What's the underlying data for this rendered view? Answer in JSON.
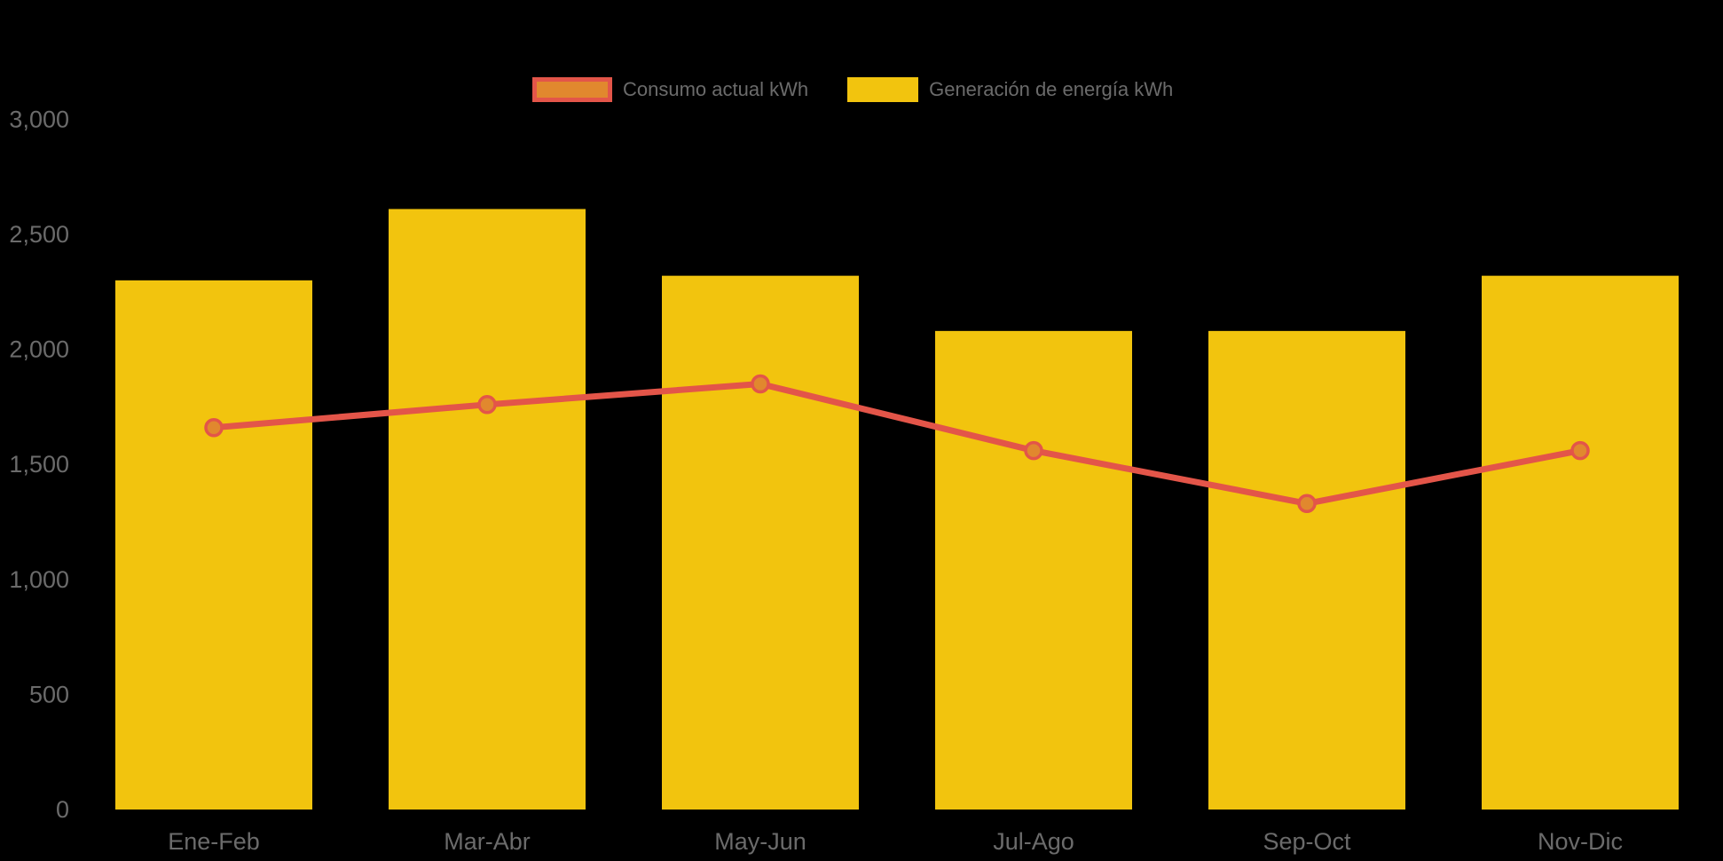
{
  "legend": {
    "items": [
      {
        "label": "Consumo actual kWh",
        "swatch_fill": "#E1882E",
        "swatch_border": "#E35549",
        "series_type": "line"
      },
      {
        "label": "Generación de energía kWh",
        "swatch_fill": "#F2C40E",
        "swatch_border": null,
        "series_type": "bar"
      }
    ]
  },
  "y_axis": {
    "tick_labels": [
      "3,000",
      "2,500",
      "2,000",
      "1,500",
      "1,000",
      "500",
      "0"
    ],
    "tick_values": [
      3000,
      2500,
      2000,
      1500,
      1000,
      500,
      0
    ]
  },
  "x_axis": {
    "labels": [
      "Ene-Feb",
      "Mar-Abr",
      "May-Jun",
      "Jul-Ago",
      "Sep-Oct",
      "Nov-Dic"
    ]
  },
  "colors": {
    "background": "#000000",
    "bar_fill": "#F2C40E",
    "line_stroke": "#E35549",
    "marker_fill": "#E1882E",
    "marker_stroke": "#E35549",
    "axis_text": "#6B6B6B",
    "legend_text": "#6B6B6B"
  },
  "chart_data": {
    "type": "bar",
    "subtype": "combo-bar-line",
    "title": "",
    "xlabel": "",
    "ylabel": "",
    "categories": [
      "Ene-Feb",
      "Mar-Abr",
      "May-Jun",
      "Jul-Ago",
      "Sep-Oct",
      "Nov-Dic"
    ],
    "series": [
      {
        "name": "Generación de energía kWh",
        "type": "bar",
        "color": "#F2C40E",
        "values": [
          2300,
          2610,
          2320,
          2080,
          2080,
          2320
        ]
      },
      {
        "name": "Consumo actual kWh",
        "type": "line",
        "color": "#E35549",
        "marker_fill": "#E1882E",
        "values": [
          1660,
          1760,
          1850,
          1560,
          1330,
          1560
        ]
      }
    ],
    "ylim": [
      0,
      3000
    ],
    "ytick_step": 500,
    "grid": false,
    "legend_position": "top",
    "background": "#000000",
    "units": "kWh"
  }
}
